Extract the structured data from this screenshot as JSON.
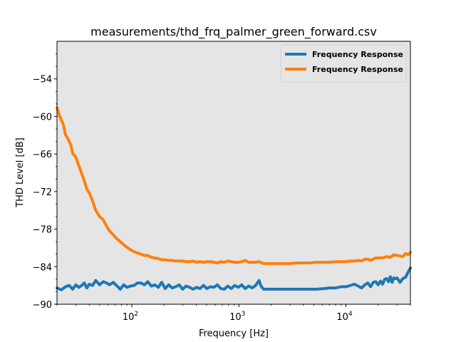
{
  "chart_data": {
    "type": "line",
    "title": "measurements/thd_frq_palmer_green_forward.csv",
    "xlabel": "Frequency [Hz]",
    "ylabel": "THD Level [dB]",
    "xscale": "log",
    "xlim": [
      20,
      40000
    ],
    "ylim": [
      -90,
      -48
    ],
    "grid": false,
    "background": "#e5e5e5",
    "legend_position": "top-right",
    "y_ticks": [
      -90,
      -84,
      -78,
      -72,
      -66,
      -60,
      -54
    ],
    "y_tick_labels": [
      "−90",
      "−84",
      "−78",
      "−72",
      "−66",
      "−60",
      "−54"
    ],
    "x_ticks": [
      100,
      1000,
      10000
    ],
    "x_tick_labels": [
      {
        "base": "10",
        "exp": "2"
      },
      {
        "base": "10",
        "exp": "3"
      },
      {
        "base": "10",
        "exp": "4"
      }
    ],
    "series": [
      {
        "name": "Frequency Response",
        "color": "#1f77b4",
        "x": [
          20,
          22,
          24,
          26,
          28,
          30,
          32,
          34,
          36,
          38,
          40,
          43,
          46,
          50,
          54,
          58,
          62,
          67,
          72,
          78,
          84,
          90,
          97,
          105,
          113,
          122,
          131,
          141,
          152,
          164,
          177,
          190,
          205,
          221,
          238,
          257,
          277,
          298,
          321,
          346,
          373,
          402,
          433,
          467,
          503,
          542,
          584,
          629,
          678,
          731,
          788,
          849,
          915,
          986,
          1062,
          1145,
          1234,
          1330,
          1433,
          1544,
          1600,
          1700,
          1800,
          2000,
          2300,
          2700,
          3200,
          3800,
          4500,
          5300,
          6300,
          7000,
          7500,
          8000,
          9000,
          10000,
          11000,
          12000,
          13000,
          14000,
          15000,
          16000,
          17000,
          18000,
          19000,
          20000,
          21000,
          22000,
          23000,
          24000,
          25000,
          26000,
          27000,
          28000,
          29000,
          30000,
          32000,
          34000,
          36000,
          38000,
          40000
        ],
        "y": [
          -87.4,
          -87.7,
          -87.2,
          -87.0,
          -87.6,
          -86.9,
          -87.3,
          -87.0,
          -86.6,
          -87.4,
          -86.8,
          -87.0,
          -86.2,
          -86.9,
          -86.4,
          -86.6,
          -86.9,
          -86.5,
          -87.0,
          -87.6,
          -86.9,
          -87.3,
          -87.1,
          -87.0,
          -86.6,
          -86.6,
          -86.9,
          -86.4,
          -87.1,
          -86.9,
          -87.3,
          -86.5,
          -87.5,
          -86.9,
          -87.4,
          -87.2,
          -86.9,
          -87.6,
          -87.1,
          -87.3,
          -87.6,
          -87.3,
          -87.5,
          -87.0,
          -87.5,
          -87.2,
          -87.3,
          -86.9,
          -87.5,
          -87.6,
          -87.1,
          -87.5,
          -87.0,
          -87.3,
          -86.9,
          -87.5,
          -87.1,
          -87.4,
          -87.0,
          -86.2,
          -87.0,
          -87.6,
          -87.6,
          -87.6,
          -87.6,
          -87.6,
          -87.6,
          -87.6,
          -87.6,
          -87.6,
          -87.5,
          -87.4,
          -87.4,
          -87.4,
          -87.2,
          -87.2,
          -87.0,
          -86.8,
          -87.1,
          -87.4,
          -86.9,
          -86.6,
          -87.2,
          -86.5,
          -86.4,
          -86.9,
          -86.3,
          -86.8,
          -86.0,
          -85.9,
          -86.4,
          -85.6,
          -86.5,
          -85.8,
          -85.9,
          -85.8,
          -86.5,
          -85.9,
          -85.7,
          -84.9,
          -84.2
        ],
        "linewidth": 4
      },
      {
        "name": "Frequency Response",
        "color": "#ff7f0e",
        "x": [
          20,
          21,
          22,
          23,
          24,
          25,
          26,
          27,
          28,
          30,
          32,
          34,
          36,
          38,
          40,
          43,
          46,
          50,
          54,
          58,
          62,
          67,
          72,
          78,
          84,
          90,
          97,
          105,
          113,
          122,
          131,
          141,
          152,
          164,
          177,
          190,
          205,
          221,
          238,
          257,
          277,
          298,
          321,
          346,
          373,
          402,
          433,
          467,
          503,
          542,
          584,
          629,
          678,
          731,
          788,
          849,
          915,
          986,
          1062,
          1145,
          1234,
          1330,
          1433,
          1544,
          1700,
          1900,
          2200,
          2600,
          3000,
          3500,
          4000,
          4600,
          5200,
          6000,
          7000,
          8000,
          9000,
          10000,
          11000,
          12000,
          13000,
          14000,
          15000,
          16000,
          17000,
          18000,
          19000,
          20000,
          22000,
          24000,
          26000,
          28000,
          30000,
          32000,
          34000,
          36000,
          38000,
          40000
        ],
        "y": [
          -58.6,
          -59.8,
          -60.6,
          -61.4,
          -62.9,
          -63.4,
          -64.0,
          -64.6,
          -65.9,
          -66.5,
          -67.9,
          -69.1,
          -70.3,
          -71.6,
          -72.2,
          -73.5,
          -75.0,
          -76.0,
          -76.5,
          -77.5,
          -78.3,
          -78.9,
          -79.5,
          -80.0,
          -80.5,
          -80.9,
          -81.3,
          -81.6,
          -81.8,
          -82.0,
          -82.2,
          -82.2,
          -82.5,
          -82.6,
          -82.7,
          -82.9,
          -82.9,
          -83.0,
          -83.0,
          -83.1,
          -83.1,
          -83.1,
          -83.2,
          -83.2,
          -83.1,
          -83.3,
          -83.2,
          -83.3,
          -83.2,
          -83.2,
          -83.3,
          -83.4,
          -83.2,
          -83.3,
          -83.1,
          -83.2,
          -83.3,
          -83.3,
          -83.2,
          -83.0,
          -83.3,
          -83.3,
          -83.3,
          -83.2,
          -83.5,
          -83.5,
          -83.5,
          -83.5,
          -83.5,
          -83.4,
          -83.4,
          -83.4,
          -83.3,
          -83.3,
          -83.3,
          -83.2,
          -83.2,
          -83.2,
          -83.1,
          -83.1,
          -83.0,
          -83.1,
          -82.8,
          -82.8,
          -83.0,
          -82.8,
          -82.6,
          -82.6,
          -82.6,
          -82.4,
          -82.5,
          -82.1,
          -82.2,
          -82.3,
          -82.4,
          -81.9,
          -82.1,
          -81.7
        ],
        "linewidth": 4
      }
    ]
  }
}
